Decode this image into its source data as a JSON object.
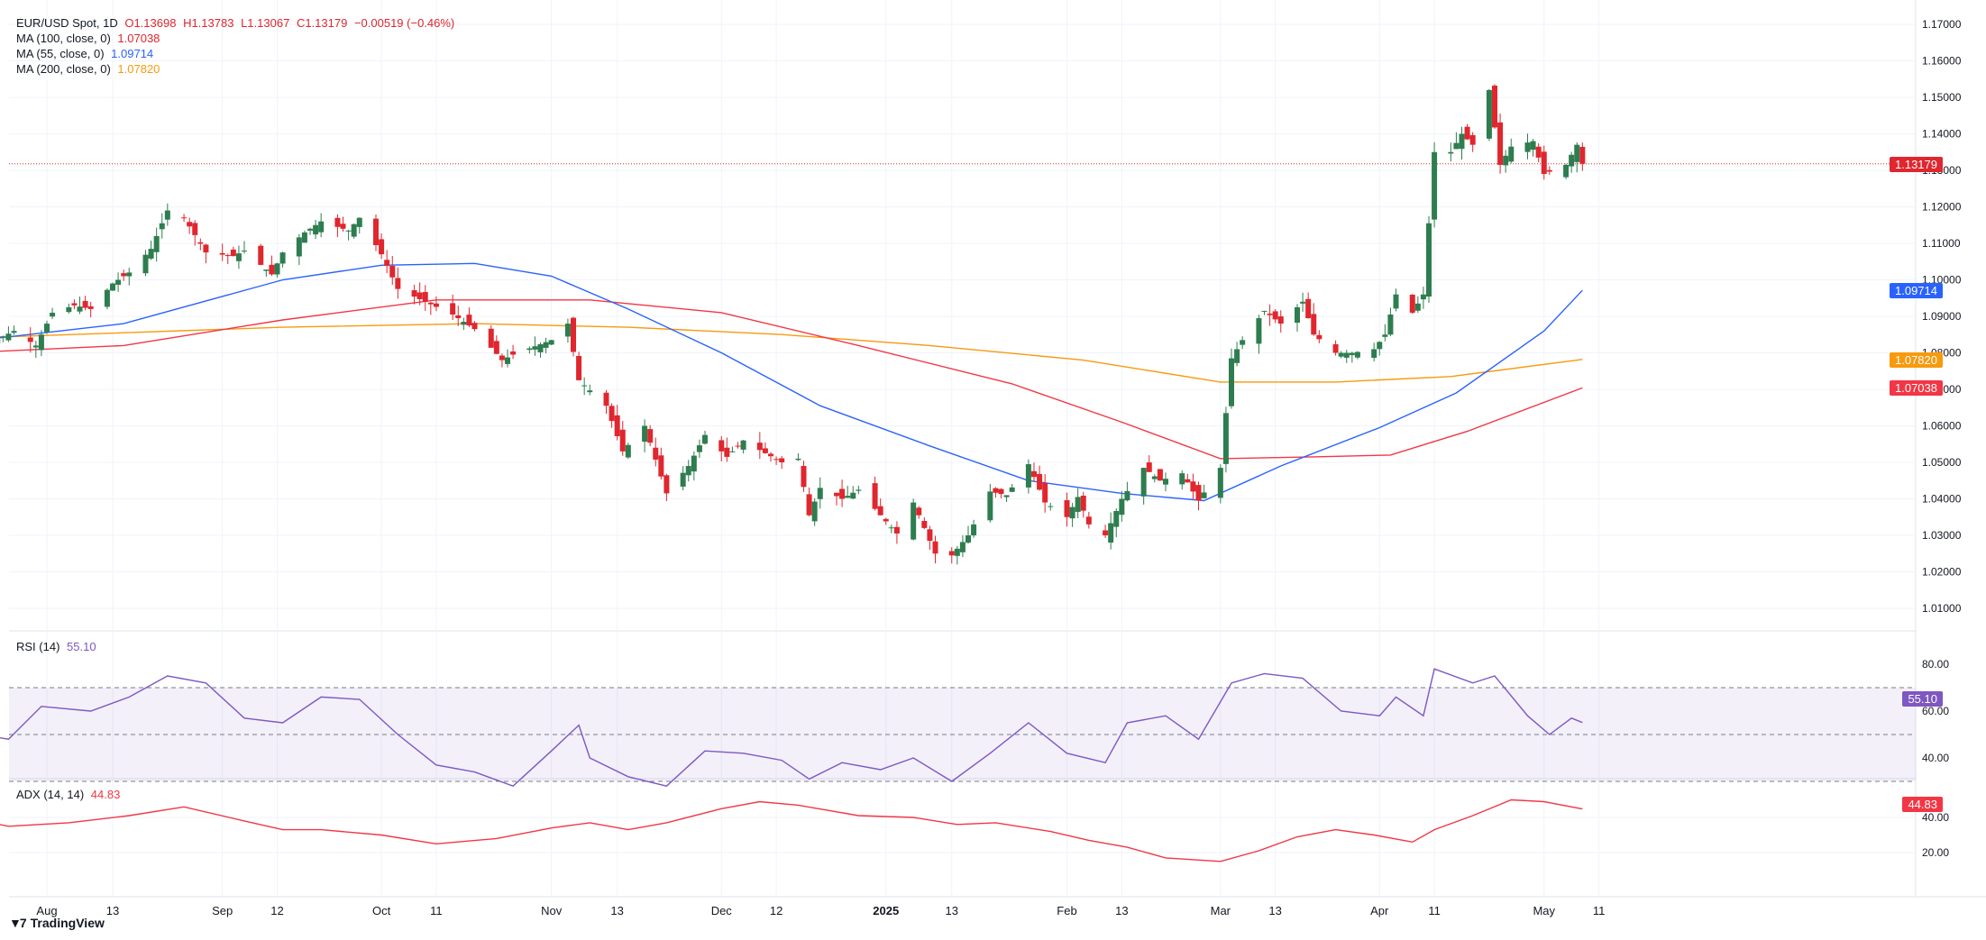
{
  "header": {
    "symbol": "EUR/USD Spot, 1D",
    "open": "O1.13698",
    "high": "H1.13783",
    "low": "L1.13067",
    "close": "C1.13179",
    "change": "−0.00519 (−0.46%)"
  },
  "legend": {
    "ma100_label": "MA (100, close, 0)",
    "ma100_value": "1.07038",
    "ma55_label": "MA (55, close, 0)",
    "ma55_value": "1.09714",
    "ma200_label": "MA (200, close, 0)",
    "ma200_value": "1.07820",
    "rsi_label": "RSI (14)",
    "rsi_value": "55.10",
    "adx_label": "ADX (14, 14)",
    "adx_value": "44.83"
  },
  "price_tags": {
    "last": "1.13179",
    "ma55": "1.09714",
    "ma200": "1.07820",
    "ma100": "1.07038",
    "rsi": "55.10",
    "adx": "44.83"
  },
  "branding": {
    "name": "TradingView"
  },
  "colors": {
    "up": "#2e7d4f",
    "down": "#e0262e",
    "ma55": "#2962ff",
    "ma100": "#f23645",
    "ma200": "#f79a0e",
    "rsi": "#7e57c2",
    "adx": "#f23645"
  },
  "chart_data": {
    "type": "candlestick",
    "y_axis_ticks": [
      "1.17000",
      "1.16000",
      "1.15000",
      "1.14000",
      "1.13000",
      "1.12000",
      "1.11000",
      "1.10000",
      "1.09000",
      "1.08000",
      "1.07000",
      "1.06000",
      "1.05000",
      "1.04000",
      "1.03000",
      "1.02000",
      "1.01000"
    ],
    "ylim": [
      1.006,
      1.172
    ],
    "x_axis_ticks": [
      {
        "label": "Aug",
        "date": "2024-08-01"
      },
      {
        "label": "13",
        "date": "2024-08-13"
      },
      {
        "label": "Sep",
        "date": "2024-09-02"
      },
      {
        "label": "12",
        "date": "2024-09-12"
      },
      {
        "label": "Oct",
        "date": "2024-10-01"
      },
      {
        "label": "11",
        "date": "2024-10-11"
      },
      {
        "label": "Nov",
        "date": "2024-11-01"
      },
      {
        "label": "13",
        "date": "2024-11-13"
      },
      {
        "label": "Dec",
        "date": "2024-12-02"
      },
      {
        "label": "12",
        "date": "2024-12-12"
      },
      {
        "label": "2025",
        "date": "2025-01-01"
      },
      {
        "label": "13",
        "date": "2025-01-13"
      },
      {
        "label": "Feb",
        "date": "2025-02-03"
      },
      {
        "label": "13",
        "date": "2025-02-13"
      },
      {
        "label": "Mar",
        "date": "2025-03-03"
      },
      {
        "label": "13",
        "date": "2025-03-13"
      },
      {
        "label": "Apr",
        "date": "2025-04-01"
      },
      {
        "label": "11",
        "date": "2025-04-11"
      },
      {
        "label": "May",
        "date": "2025-05-01"
      },
      {
        "label": "11",
        "date": "2025-05-11"
      }
    ],
    "close_series": [
      [
        "2024-07-17",
        1.0865
      ],
      [
        "2024-07-22",
        1.083
      ],
      [
        "2024-07-26",
        1.086
      ],
      [
        "2024-07-30",
        1.082
      ],
      [
        "2024-08-02",
        1.091
      ],
      [
        "2024-08-06",
        1.093
      ],
      [
        "2024-08-09",
        1.092
      ],
      [
        "2024-08-13",
        1.099
      ],
      [
        "2024-08-16",
        1.102
      ],
      [
        "2024-08-20",
        1.1085
      ],
      [
        "2024-08-23",
        1.119
      ],
      [
        "2024-08-26",
        1.117
      ],
      [
        "2024-08-30",
        1.1075
      ],
      [
        "2024-09-04",
        1.1065
      ],
      [
        "2024-09-06",
        1.108
      ],
      [
        "2024-09-11",
        1.1015
      ],
      [
        "2024-09-13",
        1.1075
      ],
      [
        "2024-09-17",
        1.113
      ],
      [
        "2024-09-20",
        1.116
      ],
      [
        "2024-09-25",
        1.1135
      ],
      [
        "2024-09-27",
        1.117
      ],
      [
        "2024-10-01",
        1.107
      ],
      [
        "2024-10-04",
        1.0975
      ],
      [
        "2024-10-09",
        1.094
      ],
      [
        "2024-10-14",
        1.0905
      ],
      [
        "2024-10-18",
        1.0865
      ],
      [
        "2024-10-23",
        1.078
      ],
      [
        "2024-10-25",
        1.0795
      ],
      [
        "2024-10-29",
        1.0818
      ],
      [
        "2024-11-01",
        1.0835
      ],
      [
        "2024-11-04",
        1.088
      ],
      [
        "2024-11-06",
        1.0725
      ],
      [
        "2024-11-11",
        1.0655
      ],
      [
        "2024-11-14",
        1.053
      ],
      [
        "2024-11-18",
        1.06
      ],
      [
        "2024-11-22",
        1.0415
      ],
      [
        "2024-11-26",
        1.049
      ],
      [
        "2024-11-29",
        1.0575
      ],
      [
        "2024-12-03",
        1.0515
      ],
      [
        "2024-12-06",
        1.056
      ],
      [
        "2024-12-10",
        1.0525
      ],
      [
        "2024-12-13",
        1.05
      ],
      [
        "2024-12-16",
        1.051
      ],
      [
        "2024-12-18",
        1.0355
      ],
      [
        "2024-12-20",
        1.043
      ],
      [
        "2024-12-24",
        1.04
      ],
      [
        "2024-12-27",
        1.0425
      ],
      [
        "2024-12-31",
        1.0355
      ],
      [
        "2025-01-03",
        1.0305
      ],
      [
        "2025-01-06",
        1.039
      ],
      [
        "2025-01-08",
        1.032
      ],
      [
        "2025-01-10",
        1.025
      ],
      [
        "2025-01-13",
        1.0245
      ],
      [
        "2025-01-16",
        1.03
      ],
      [
        "2025-01-20",
        1.042
      ],
      [
        "2025-01-23",
        1.041
      ],
      [
        "2025-01-27",
        1.0495
      ],
      [
        "2025-01-30",
        1.039
      ],
      [
        "2025-02-03",
        1.035
      ],
      [
        "2025-02-05",
        1.0405
      ],
      [
        "2025-02-07",
        1.033
      ],
      [
        "2025-02-10",
        1.03
      ],
      [
        "2025-02-13",
        1.04
      ],
      [
        "2025-02-17",
        1.0485
      ],
      [
        "2025-02-20",
        1.045
      ],
      [
        "2025-02-24",
        1.047
      ],
      [
        "2025-02-27",
        1.0395
      ],
      [
        "2025-03-03",
        1.0485
      ],
      [
        "2025-03-05",
        1.0785
      ],
      [
        "2025-03-07",
        1.0835
      ],
      [
        "2025-03-11",
        1.0915
      ],
      [
        "2025-03-14",
        1.088
      ],
      [
        "2025-03-18",
        1.094
      ],
      [
        "2025-03-20",
        1.085
      ],
      [
        "2025-03-24",
        1.08
      ],
      [
        "2025-03-27",
        1.08
      ],
      [
        "2025-03-31",
        1.081
      ],
      [
        "2025-04-02",
        1.085
      ],
      [
        "2025-04-04",
        1.096
      ],
      [
        "2025-04-07",
        1.091
      ],
      [
        "2025-04-09",
        1.096
      ],
      [
        "2025-04-11",
        1.135
      ],
      [
        "2025-04-14",
        1.135
      ],
      [
        "2025-04-16",
        1.14
      ],
      [
        "2025-04-18",
        1.137
      ],
      [
        "2025-04-21",
        1.152
      ],
      [
        "2025-04-23",
        1.1315
      ],
      [
        "2025-04-25",
        1.1365
      ],
      [
        "2025-04-29",
        1.138
      ],
      [
        "2025-05-01",
        1.129
      ],
      [
        "2025-05-05",
        1.1315
      ],
      [
        "2025-05-07",
        1.137
      ],
      [
        "2025-05-08",
        1.1318
      ]
    ],
    "ma55_series": [
      [
        "2024-07-17",
        1.083
      ],
      [
        "2024-08-15",
        1.088
      ],
      [
        "2024-09-13",
        1.1
      ],
      [
        "2024-10-01",
        1.104
      ],
      [
        "2024-10-18",
        1.1045
      ],
      [
        "2024-11-01",
        1.101
      ],
      [
        "2024-11-15",
        1.092
      ],
      [
        "2024-12-02",
        1.08
      ],
      [
        "2024-12-20",
        1.0655
      ],
      [
        "2025-01-09",
        1.0545
      ],
      [
        "2025-01-27",
        1.045
      ],
      [
        "2025-02-13",
        1.0415
      ],
      [
        "2025-02-28",
        1.0395
      ],
      [
        "2025-03-14",
        1.049
      ],
      [
        "2025-04-01",
        1.0595
      ],
      [
        "2025-04-15",
        1.069
      ],
      [
        "2025-05-01",
        1.086
      ],
      [
        "2025-05-08",
        1.0971
      ]
    ],
    "ma100_series": [
      [
        "2024-07-17",
        1.08
      ],
      [
        "2024-08-15",
        1.082
      ],
      [
        "2024-09-13",
        1.089
      ],
      [
        "2024-10-11",
        1.0945
      ],
      [
        "2024-11-08",
        1.0945
      ],
      [
        "2024-12-02",
        1.091
      ],
      [
        "2024-12-27",
        1.082
      ],
      [
        "2025-01-24",
        1.0715
      ],
      [
        "2025-02-13",
        1.061
      ],
      [
        "2025-03-03",
        1.051
      ],
      [
        "2025-03-20",
        1.0515
      ],
      [
        "2025-04-03",
        1.052
      ],
      [
        "2025-04-17",
        1.0585
      ],
      [
        "2025-05-08",
        1.0704
      ]
    ],
    "ma200_series": [
      [
        "2024-07-17",
        1.084
      ],
      [
        "2024-09-13",
        1.087
      ],
      [
        "2024-10-18",
        1.088
      ],
      [
        "2024-11-15",
        1.087
      ],
      [
        "2024-12-13",
        1.085
      ],
      [
        "2025-01-09",
        1.082
      ],
      [
        "2025-02-06",
        1.078
      ],
      [
        "2025-03-03",
        1.072
      ],
      [
        "2025-03-24",
        1.072
      ],
      [
        "2025-04-14",
        1.0735
      ],
      [
        "2025-05-08",
        1.0782
      ]
    ],
    "last_price": 1.13179,
    "rsi": {
      "y_axis_ticks": [
        "80.00",
        "60.00",
        "40.00"
      ],
      "ylim": [
        25,
        82
      ],
      "levels": [
        70,
        50,
        30
      ],
      "series": [
        [
          "2024-07-17",
          51
        ],
        [
          "2024-07-25",
          48
        ],
        [
          "2024-07-31",
          62
        ],
        [
          "2024-08-09",
          60
        ],
        [
          "2024-08-16",
          66
        ],
        [
          "2024-08-23",
          75
        ],
        [
          "2024-08-30",
          72
        ],
        [
          "2024-09-06",
          57
        ],
        [
          "2024-09-13",
          55
        ],
        [
          "2024-09-20",
          66
        ],
        [
          "2024-09-27",
          65
        ],
        [
          "2024-10-04",
          50
        ],
        [
          "2024-10-11",
          37
        ],
        [
          "2024-10-18",
          34
        ],
        [
          "2024-10-25",
          28
        ],
        [
          "2024-11-01",
          43
        ],
        [
          "2024-11-06",
          54
        ],
        [
          "2024-11-08",
          40
        ],
        [
          "2024-11-15",
          32
        ],
        [
          "2024-11-22",
          28
        ],
        [
          "2024-11-29",
          43
        ],
        [
          "2024-12-06",
          42
        ],
        [
          "2024-12-13",
          39
        ],
        [
          "2024-12-18",
          31
        ],
        [
          "2024-12-24",
          38
        ],
        [
          "2024-12-31",
          35
        ],
        [
          "2025-01-06",
          40
        ],
        [
          "2025-01-13",
          30
        ],
        [
          "2025-01-20",
          42
        ],
        [
          "2025-01-27",
          55
        ],
        [
          "2025-02-03",
          42
        ],
        [
          "2025-02-10",
          38
        ],
        [
          "2025-02-14",
          55
        ],
        [
          "2025-02-21",
          58
        ],
        [
          "2025-02-27",
          48
        ],
        [
          "2025-03-05",
          72
        ],
        [
          "2025-03-11",
          76
        ],
        [
          "2025-03-18",
          74
        ],
        [
          "2025-03-25",
          60
        ],
        [
          "2025-04-01",
          58
        ],
        [
          "2025-04-04",
          66
        ],
        [
          "2025-04-09",
          58
        ],
        [
          "2025-04-11",
          78
        ],
        [
          "2025-04-18",
          72
        ],
        [
          "2025-04-22",
          75
        ],
        [
          "2025-04-28",
          58
        ],
        [
          "2025-05-02",
          50
        ],
        [
          "2025-05-06",
          57
        ],
        [
          "2025-05-08",
          55.1
        ]
      ]
    },
    "adx": {
      "y_axis_ticks": [
        "40.00",
        "20.00"
      ],
      "ylim": [
        12,
        53
      ],
      "series": [
        [
          "2024-07-17",
          40
        ],
        [
          "2024-07-25",
          35
        ],
        [
          "2024-08-05",
          37
        ],
        [
          "2024-08-16",
          41
        ],
        [
          "2024-08-26",
          46
        ],
        [
          "2024-09-06",
          38
        ],
        [
          "2024-09-13",
          33
        ],
        [
          "2024-09-20",
          33
        ],
        [
          "2024-10-01",
          30
        ],
        [
          "2024-10-11",
          25
        ],
        [
          "2024-10-22",
          28
        ],
        [
          "2024-11-01",
          34
        ],
        [
          "2024-11-08",
          37
        ],
        [
          "2024-11-15",
          33
        ],
        [
          "2024-11-22",
          37
        ],
        [
          "2024-12-02",
          45
        ],
        [
          "2024-12-09",
          49
        ],
        [
          "2024-12-16",
          47
        ],
        [
          "2024-12-27",
          41
        ],
        [
          "2025-01-06",
          40
        ],
        [
          "2025-01-14",
          36
        ],
        [
          "2025-01-21",
          37
        ],
        [
          "2025-01-31",
          32
        ],
        [
          "2025-02-07",
          27
        ],
        [
          "2025-02-14",
          23
        ],
        [
          "2025-02-21",
          17
        ],
        [
          "2025-03-03",
          15
        ],
        [
          "2025-03-10",
          21
        ],
        [
          "2025-03-17",
          29
        ],
        [
          "2025-03-24",
          33
        ],
        [
          "2025-03-31",
          30
        ],
        [
          "2025-04-07",
          26
        ],
        [
          "2025-04-11",
          33
        ],
        [
          "2025-04-18",
          41
        ],
        [
          "2025-04-25",
          50
        ],
        [
          "2025-05-01",
          49
        ],
        [
          "2025-05-08",
          44.83
        ]
      ]
    }
  }
}
